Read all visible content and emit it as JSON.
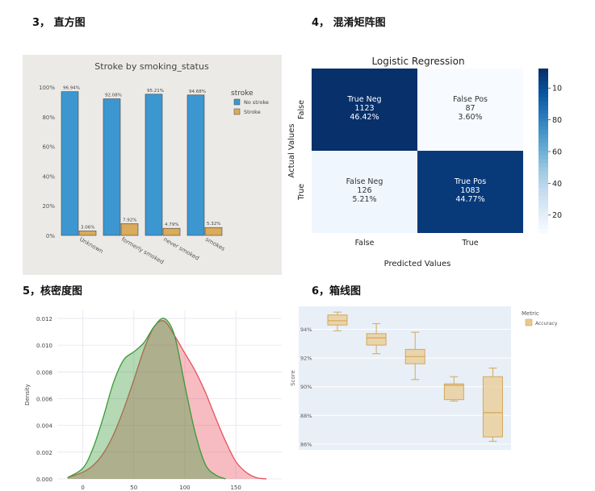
{
  "headings": {
    "h3": "3， 直方图",
    "h4": "4， 混淆矩阵图",
    "h5": "5，核密度图",
    "h6": "6，箱线图"
  },
  "chart_data": [
    {
      "type": "bar",
      "title": "Stroke by smoking_status",
      "categories": [
        "Unknown",
        "formerly smoked",
        "never smoked",
        "smokes"
      ],
      "series": [
        {
          "name": "No stroke",
          "values": [
            96.94,
            92.08,
            95.21,
            94.68
          ],
          "labels": [
            "96.94%",
            "92.08%",
            "95.21%",
            "94.68%"
          ],
          "color": "#3c97d0"
        },
        {
          "name": "Stroke",
          "values": [
            3.06,
            7.92,
            4.79,
            5.32
          ],
          "labels": [
            "3.06%",
            "7.92%",
            "4.79%",
            "5.32%"
          ],
          "color": "#d9ab5a"
        }
      ],
      "legend_title": "stroke",
      "ylim": [
        0,
        100
      ],
      "yticks": [
        "0%",
        "20%",
        "40%",
        "60%",
        "80%",
        "100%"
      ],
      "background": "#eceae7",
      "legend": "right"
    },
    {
      "type": "heatmap",
      "title": "Logistic Regression",
      "xlabel": "Predicted Values",
      "ylabel": "Actual Values",
      "xticks": [
        "False",
        "True"
      ],
      "yticks": [
        "False",
        "True"
      ],
      "cells": [
        [
          {
            "name": "True Neg",
            "count": "1123",
            "pct": "46.42%",
            "value": 1123
          },
          {
            "name": "False Pos",
            "count": "87",
            "pct": "3.60%",
            "value": 87
          }
        ],
        [
          {
            "name": "False Neg",
            "count": "126",
            "pct": "5.21%",
            "value": 126
          },
          {
            "name": "True Pos",
            "count": "1083",
            "pct": "44.77%",
            "value": 1083
          }
        ]
      ],
      "colorbar_ticks": [
        "200",
        "400",
        "600",
        "800",
        "1000"
      ],
      "colormap": "Blues",
      "vmin": 87,
      "vmax": 1123
    },
    {
      "type": "area",
      "ylabel": "Density",
      "xticks": [
        "0",
        "50",
        "100",
        "150"
      ],
      "yticks": [
        "0.000",
        "0.002",
        "0.004",
        "0.006",
        "0.008",
        "0.010",
        "0.012"
      ],
      "xlim": [
        -25,
        195
      ],
      "ylim": [
        0,
        0.0126
      ],
      "series": [
        {
          "color": "#e8505b",
          "x": [
            -15,
            0,
            10,
            20,
            30,
            40,
            50,
            60,
            70,
            80,
            90,
            100,
            110,
            120,
            130,
            140,
            150,
            160,
            170,
            180
          ],
          "y": [
            0.0001,
            0.0005,
            0.001,
            0.0019,
            0.0033,
            0.0052,
            0.0074,
            0.0097,
            0.0114,
            0.0118,
            0.0107,
            0.0094,
            0.0081,
            0.0065,
            0.0046,
            0.0028,
            0.0013,
            0.0005,
            0.0001,
            0.0
          ]
        },
        {
          "color": "#3a9a3a",
          "x": [
            -15,
            0,
            10,
            20,
            30,
            40,
            50,
            60,
            70,
            80,
            90,
            100,
            110,
            120,
            130,
            140
          ],
          "y": [
            0.0001,
            0.0008,
            0.0023,
            0.0046,
            0.0072,
            0.0089,
            0.0095,
            0.0102,
            0.0114,
            0.012,
            0.0107,
            0.007,
            0.0035,
            0.0011,
            0.0003,
            0.0
          ]
        }
      ],
      "grid": true
    },
    {
      "type": "box",
      "ylabel": "Score",
      "legend_title": "Metric",
      "series": [
        {
          "name": "Accuracy",
          "color": "#e9c98c"
        }
      ],
      "yticks": [
        "86%",
        "88%",
        "90%",
        "92%",
        "94%"
      ],
      "ylim": [
        85.6,
        95.6
      ],
      "boxes": [
        {
          "min": 93.9,
          "q1": 94.3,
          "median": 94.6,
          "q3": 95.0,
          "max": 95.2
        },
        {
          "min": 92.3,
          "q1": 92.9,
          "median": 93.4,
          "q3": 93.7,
          "max": 94.4
        },
        {
          "min": 90.5,
          "q1": 91.6,
          "median": 92.1,
          "q3": 92.6,
          "max": 93.8
        },
        {
          "min": 89.0,
          "q1": 89.1,
          "median": 90.1,
          "q3": 90.2,
          "max": 90.7
        },
        {
          "min": 86.2,
          "q1": 86.5,
          "median": 88.2,
          "q3": 90.7,
          "max": 91.3
        }
      ],
      "background": "#e8eff7",
      "legend": "top-right"
    }
  ]
}
